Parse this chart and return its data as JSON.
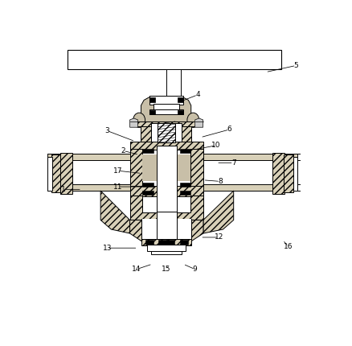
{
  "background_color": "#ffffff",
  "hatch_fill": "#d8d0b8",
  "sand_fill": "#c8bfa8",
  "white_fill": "#ffffff",
  "label_data": {
    "1": [
      0.06,
      0.555,
      0.13,
      0.555
    ],
    "2": [
      0.285,
      0.41,
      0.345,
      0.425
    ],
    "3": [
      0.225,
      0.335,
      0.33,
      0.375
    ],
    "4": [
      0.565,
      0.2,
      0.475,
      0.235
    ],
    "5": [
      0.935,
      0.09,
      0.82,
      0.115
    ],
    "6": [
      0.685,
      0.33,
      0.575,
      0.36
    ],
    "7": [
      0.7,
      0.455,
      0.635,
      0.455
    ],
    "8": [
      0.65,
      0.525,
      0.585,
      0.52
    ],
    "9": [
      0.555,
      0.855,
      0.51,
      0.835
    ],
    "10": [
      0.635,
      0.39,
      0.555,
      0.405
    ],
    "11": [
      0.265,
      0.545,
      0.36,
      0.545
    ],
    "12": [
      0.645,
      0.735,
      0.575,
      0.735
    ],
    "13": [
      0.225,
      0.775,
      0.34,
      0.775
    ],
    "14": [
      0.335,
      0.855,
      0.395,
      0.835
    ],
    "15": [
      0.445,
      0.855,
      0.46,
      0.84
    ],
    "16": [
      0.905,
      0.77,
      0.885,
      0.745
    ],
    "17": [
      0.265,
      0.485,
      0.355,
      0.495
    ]
  }
}
